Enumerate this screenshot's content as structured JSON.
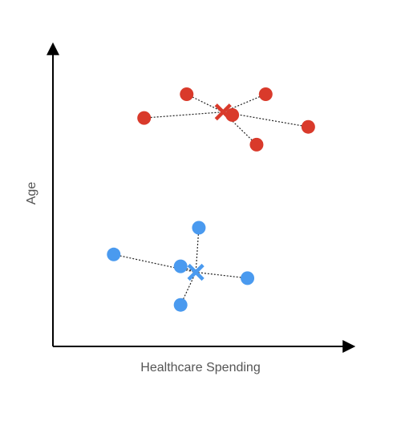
{
  "chart_data": {
    "type": "scatter",
    "xlabel": "Healthcare Spending",
    "ylabel": "Age",
    "grid": false,
    "xlim": [
      0,
      100
    ],
    "ylim": [
      0,
      100
    ],
    "clusters": [
      {
        "color": "#d93a2b",
        "centroid": [
          56,
          79
        ],
        "points": [
          [
            30,
            77
          ],
          [
            44,
            85
          ],
          [
            59,
            78
          ],
          [
            70,
            85
          ],
          [
            67,
            68
          ],
          [
            84,
            74
          ]
        ]
      },
      {
        "color": "#4a9aef",
        "centroid": [
          47,
          25
        ],
        "points": [
          [
            20,
            31
          ],
          [
            42,
            27
          ],
          [
            48,
            40
          ],
          [
            64,
            23
          ],
          [
            42,
            14
          ]
        ]
      }
    ]
  }
}
